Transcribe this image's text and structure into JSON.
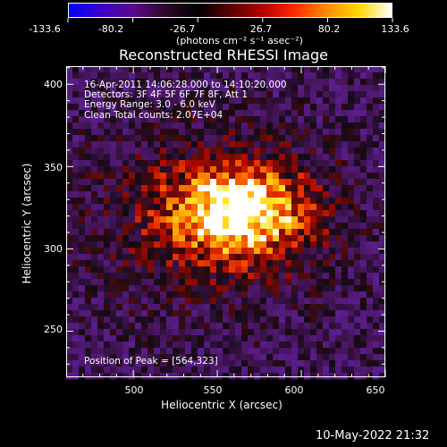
{
  "colorbar": {
    "ticks": [
      "-133.6",
      "-80.2",
      "-26.7",
      "26.7",
      "80.2",
      "133.6"
    ],
    "tick_values": [
      -133.6,
      -80.2,
      -26.7,
      26.7,
      80.2,
      133.6
    ],
    "units_label": "(photons cm⁻² s⁻¹ asec⁻²)",
    "colors": [
      "#0000ff",
      "#3b00c8",
      "#5a0a8c",
      "#2a0a2a",
      "#000000",
      "#5a0000",
      "#b30000",
      "#ff2a00",
      "#ff8c00",
      "#ffd700",
      "#ffffff"
    ]
  },
  "title": "Reconstructed RHESSI Image",
  "info": {
    "line1": "16-Apr-2011 14:06:28.000 to 14:10:20.000",
    "line2": "Detectors: 3F 4F 5F 6F 7F 8F, Att 1",
    "line3": "Energy Range: 3.0 - 6.0 keV",
    "line4": "Clean     Total counts: 2.07E+04"
  },
  "peak_label": "Position of Peak = [564,323]",
  "axes": {
    "xlabel": "Heliocentric X (arcsec)",
    "ylabel": "Heliocentric Y (arcsec)",
    "xlim": [
      460,
      650
    ],
    "ylim": [
      222,
      411
    ],
    "xticks": [
      500,
      550,
      600,
      650
    ],
    "yticks": [
      250,
      300,
      350,
      400
    ],
    "xtick_labels": [
      "500",
      "550",
      "600",
      "650"
    ],
    "ytick_labels": [
      "250",
      "300",
      "350",
      "400"
    ]
  },
  "image": {
    "peak": [
      564,
      323
    ]
  },
  "footer_timestamp": "10-May-2022 21:32"
}
